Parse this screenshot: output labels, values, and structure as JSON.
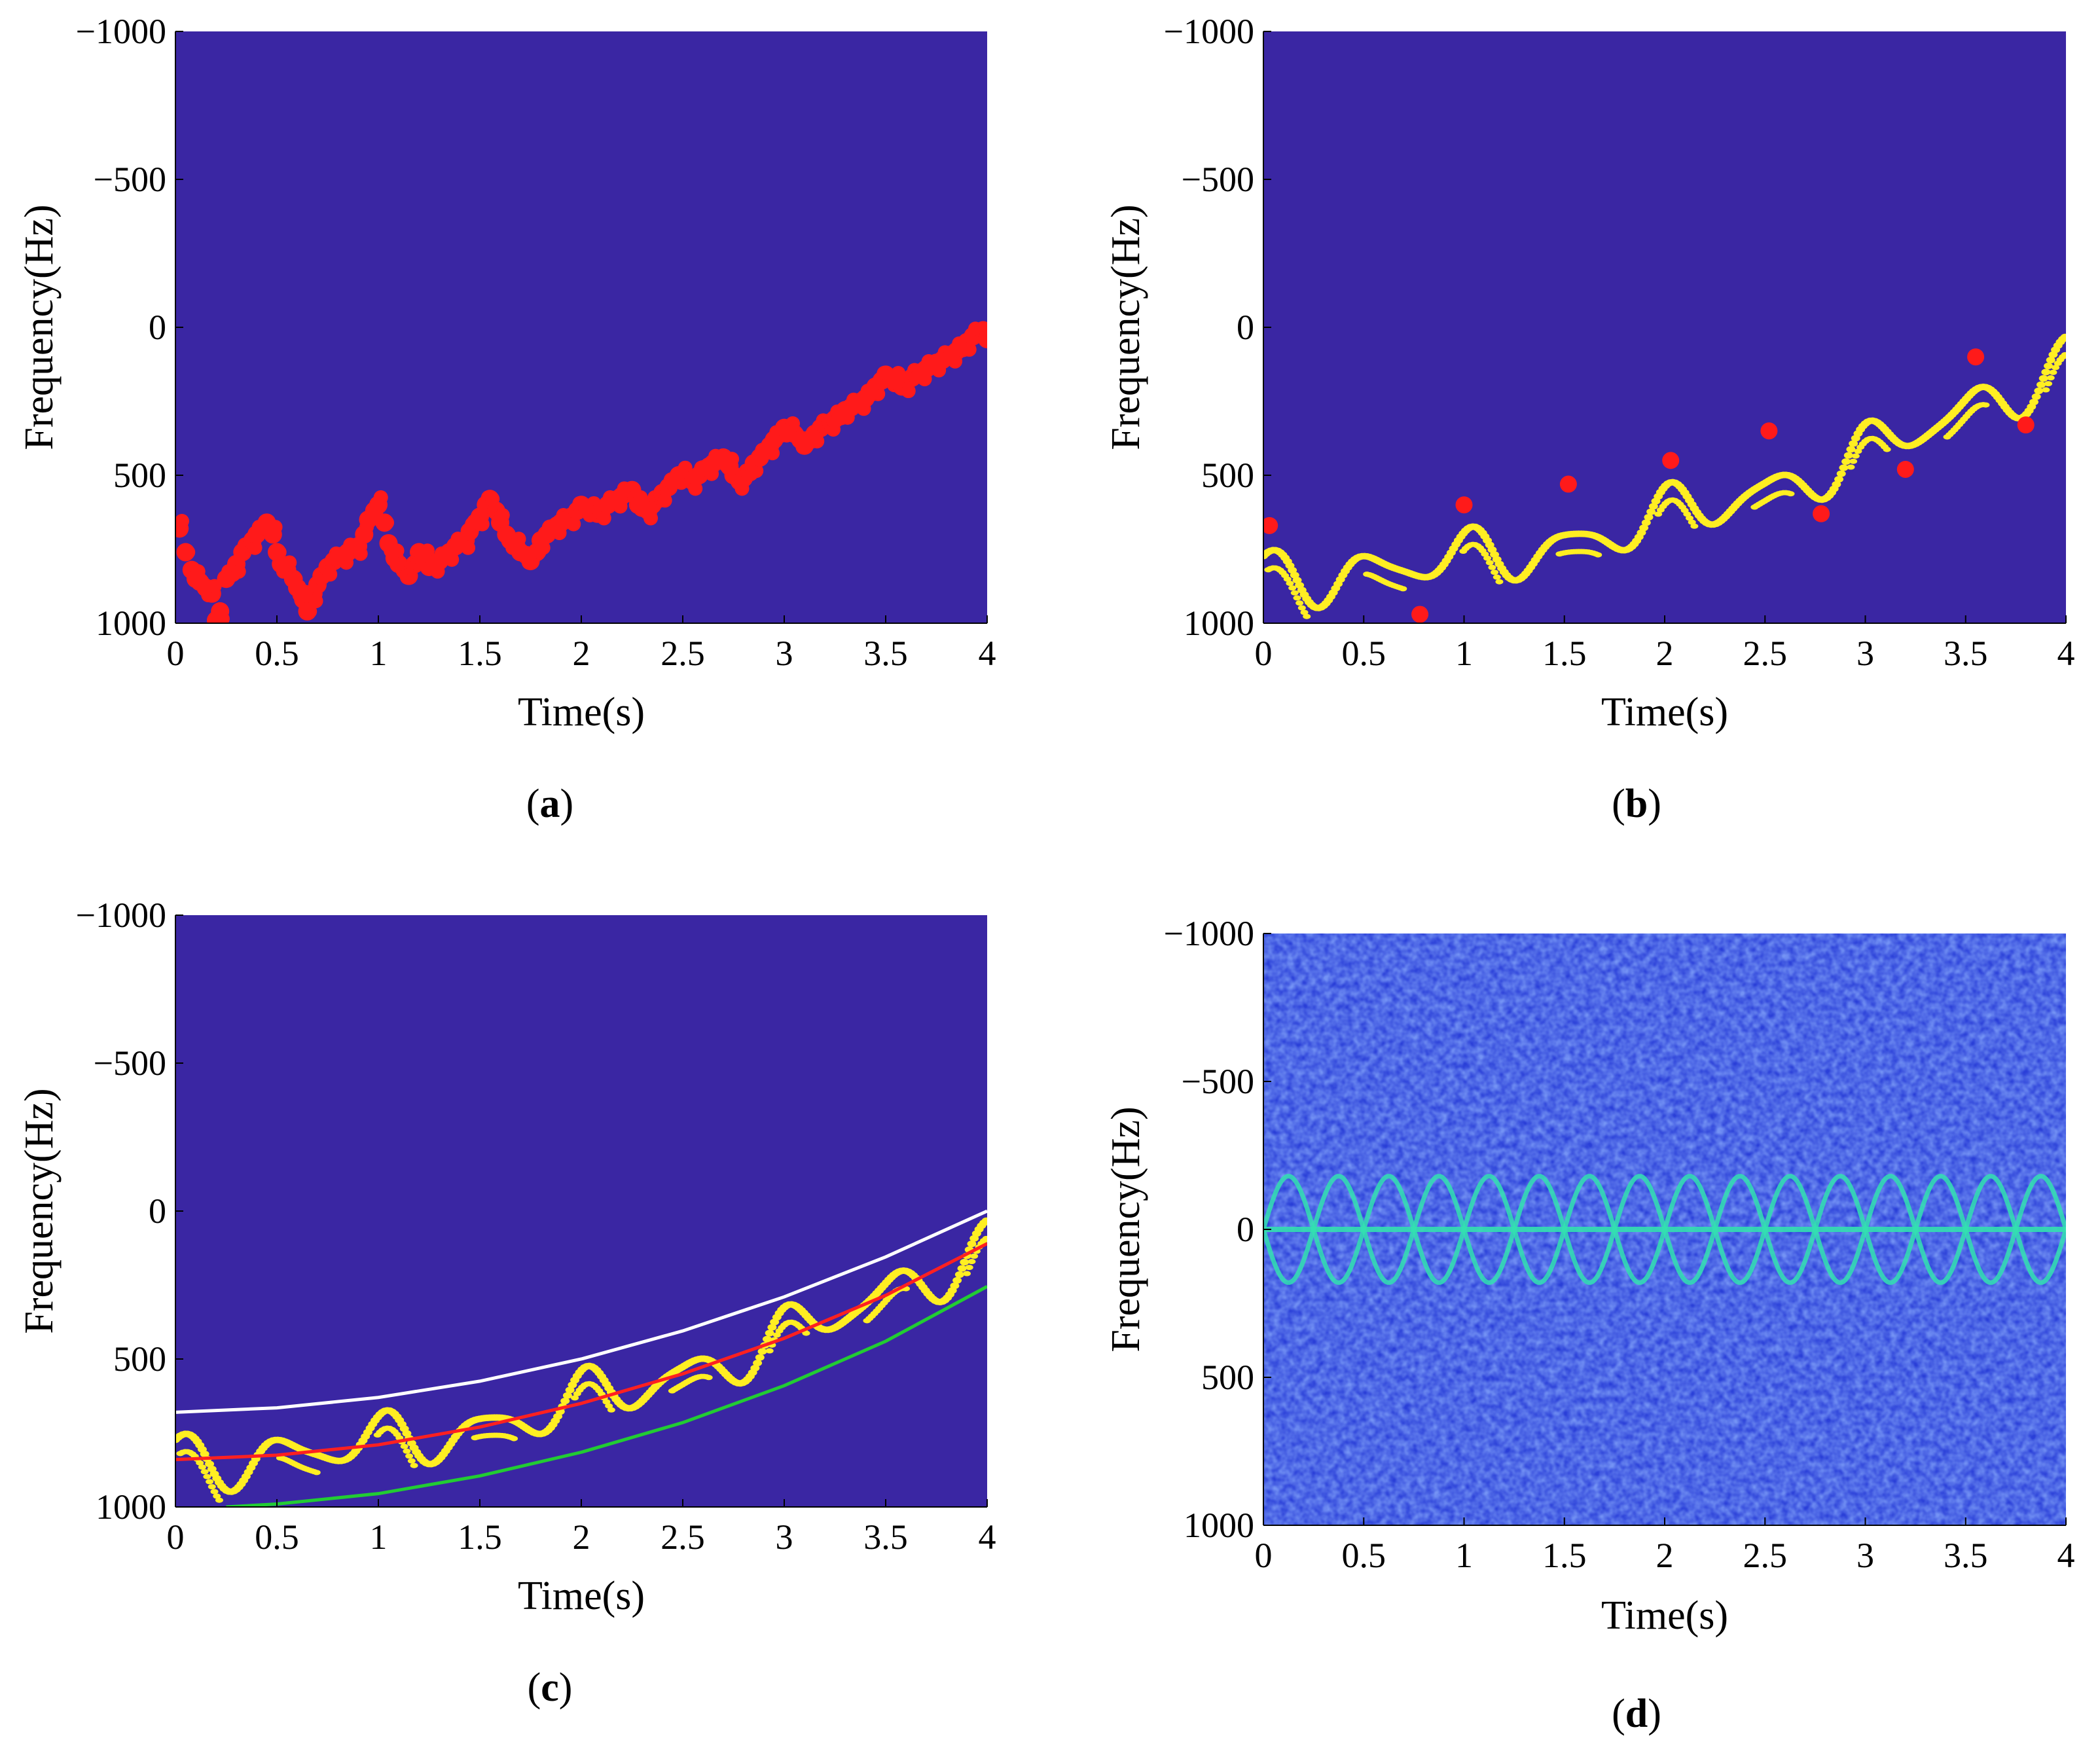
{
  "figure": {
    "panels": [
      {
        "id": "a",
        "caption_letter": "a"
      },
      {
        "id": "b",
        "caption_letter": "b"
      },
      {
        "id": "c",
        "caption_letter": "c"
      },
      {
        "id": "d",
        "caption_letter": "d"
      }
    ]
  },
  "colors": {
    "background": "#3a26a3",
    "red_points": "#ff1a1a",
    "yellow_ridge": "#ffee22",
    "white_curve": "#ffffff",
    "red_curve": "#ff2020",
    "green_curve": "#22cc33",
    "spectrogram_base": "#3050e6",
    "spectrogram_ridge": "#33e0b0"
  },
  "chart_data": [
    {
      "panel": "a",
      "type": "scatter",
      "xlabel": "Time(s)",
      "ylabel": "Frequency(Hz)",
      "xlim": [
        0,
        4
      ],
      "ylim": [
        -1000,
        1000
      ],
      "y_reversed": true,
      "xticks": [
        "0",
        "0.5",
        "1",
        "1.5",
        "2",
        "2.5",
        "3",
        "3.5",
        "4"
      ],
      "yticks": [
        "−1000",
        "−500",
        "0",
        "500",
        "1000"
      ],
      "grid": false,
      "series": [
        {
          "marker": "red-dot",
          "x": [
            0.02,
            0.05,
            0.08,
            0.1,
            0.12,
            0.15,
            0.18,
            0.2,
            0.22,
            0.25,
            0.28,
            0.3,
            0.33,
            0.35,
            0.38,
            0.4,
            0.43,
            0.45,
            0.48,
            0.5,
            0.52,
            0.55,
            0.58,
            0.6,
            0.63,
            0.65,
            0.68,
            0.7,
            0.72,
            0.75,
            0.78,
            0.8,
            0.83,
            0.85,
            0.88,
            0.9,
            0.93,
            0.95,
            0.98,
            1.0,
            1.03,
            1.05,
            1.08,
            1.1,
            1.13,
            1.15,
            1.18,
            1.2,
            1.23,
            1.25,
            1.28,
            1.3,
            1.33,
            1.35,
            1.38,
            1.4,
            1.43,
            1.45,
            1.48,
            1.5,
            1.53,
            1.55,
            1.58,
            1.6,
            1.63,
            1.65,
            1.68,
            1.7,
            1.73,
            1.75,
            1.78,
            1.8,
            1.83,
            1.85,
            1.88,
            1.9,
            1.93,
            1.95,
            1.98,
            2.0,
            2.03,
            2.05,
            2.08,
            2.1,
            2.13,
            2.15,
            2.18,
            2.2,
            2.23,
            2.25,
            2.28,
            2.3,
            2.33,
            2.35,
            2.38,
            2.4,
            2.43,
            2.45,
            2.48,
            2.5,
            2.53,
            2.55,
            2.58,
            2.6,
            2.63,
            2.65,
            2.68,
            2.7,
            2.73,
            2.75,
            2.78,
            2.8,
            2.83,
            2.85,
            2.88,
            2.9,
            2.93,
            2.95,
            2.98,
            3.0,
            3.03,
            3.05,
            3.08,
            3.1,
            3.13,
            3.15,
            3.18,
            3.2,
            3.23,
            3.25,
            3.28,
            3.3,
            3.33,
            3.35,
            3.38,
            3.4,
            3.43,
            3.45,
            3.48,
            3.5,
            3.53,
            3.55,
            3.58,
            3.6,
            3.63,
            3.65,
            3.68,
            3.7,
            3.73,
            3.75,
            3.78,
            3.8,
            3.83,
            3.85,
            3.88,
            3.9,
            3.93,
            3.95,
            3.98,
            4.0
          ],
          "y": [
            680,
            760,
            820,
            850,
            860,
            880,
            900,
            990,
            960,
            850,
            830,
            800,
            760,
            740,
            720,
            700,
            680,
            660,
            700,
            760,
            800,
            820,
            850,
            880,
            920,
            960,
            900,
            870,
            840,
            810,
            790,
            780,
            770,
            760,
            750,
            740,
            700,
            650,
            620,
            600,
            660,
            730,
            780,
            800,
            820,
            840,
            800,
            760,
            780,
            810,
            800,
            790,
            770,
            760,
            740,
            730,
            720,
            690,
            660,
            640,
            600,
            580,
            620,
            660,
            700,
            720,
            740,
            760,
            770,
            790,
            760,
            720,
            700,
            680,
            670,
            660,
            650,
            640,
            620,
            600,
            610,
            620,
            630,
            620,
            600,
            590,
            580,
            570,
            560,
            550,
            600,
            610,
            620,
            600,
            580,
            560,
            540,
            520,
            500,
            500,
            510,
            520,
            500,
            480,
            470,
            460,
            450,
            440,
            470,
            500,
            520,
            510,
            490,
            460,
            440,
            420,
            400,
            380,
            360,
            340,
            350,
            360,
            380,
            400,
            380,
            360,
            340,
            330,
            320,
            310,
            300,
            280,
            270,
            260,
            250,
            240,
            220,
            200,
            180,
            160,
            170,
            180,
            200,
            190,
            170,
            160,
            150,
            140,
            130,
            120,
            110,
            100,
            90,
            80,
            70,
            50,
            30,
            20,
            10,
            40
          ]
        }
      ]
    },
    {
      "panel": "b",
      "type": "scatter",
      "xlabel": "Time(s)",
      "ylabel": "Frequency(Hz)",
      "xlim": [
        0,
        4
      ],
      "ylim": [
        -1000,
        1000
      ],
      "y_reversed": true,
      "xticks": [
        "0",
        "0.5",
        "1",
        "1.5",
        "2",
        "2.5",
        "3",
        "3.5",
        "4"
      ],
      "yticks": [
        "−1000",
        "−500",
        "0",
        "500",
        "1000"
      ],
      "grid": false,
      "series": [
        {
          "marker": "red-dot",
          "x": [
            0.03,
            0.78,
            1.0,
            1.52,
            2.03,
            2.52,
            2.78,
            3.2,
            3.55,
            3.8
          ],
          "y": [
            670,
            970,
            600,
            530,
            450,
            350,
            630,
            480,
            100,
            330
          ]
        }
      ]
    },
    {
      "panel": "c",
      "type": "line",
      "xlabel": "Time(s)",
      "ylabel": "Frequency(Hz)",
      "xlim": [
        0,
        4
      ],
      "ylim": [
        -1000,
        1000
      ],
      "y_reversed": true,
      "xticks": [
        "0",
        "0.5",
        "1",
        "1.5",
        "2",
        "2.5",
        "3",
        "3.5",
        "4"
      ],
      "yticks": [
        "−1000",
        "−500",
        "0",
        "500",
        "1000"
      ],
      "grid": false,
      "series": [
        {
          "color": "white",
          "x": [
            0,
            0.5,
            1,
            1.5,
            2,
            2.5,
            3,
            3.5,
            4
          ],
          "y": [
            680,
            665,
            630,
            575,
            500,
            405,
            290,
            155,
            0
          ]
        },
        {
          "color": "red",
          "x": [
            0,
            0.5,
            1,
            1.5,
            2,
            2.5,
            3,
            3.5,
            4
          ],
          "y": [
            840,
            825,
            790,
            730,
            650,
            550,
            430,
            285,
            110
          ]
        },
        {
          "color": "green",
          "x": [
            0.25,
            0.5,
            1,
            1.5,
            2,
            2.5,
            3,
            3.5,
            4
          ],
          "y": [
            1000,
            990,
            955,
            895,
            815,
            715,
            590,
            440,
            255
          ]
        }
      ]
    },
    {
      "panel": "d",
      "type": "heatmap",
      "xlabel": "Time(s)",
      "ylabel": "Frequency(Hz)",
      "xlim": [
        0,
        4
      ],
      "ylim": [
        -1000,
        1000
      ],
      "y_reversed": true,
      "xticks": [
        "0",
        "0.5",
        "1",
        "1.5",
        "2",
        "2.5",
        "3",
        "3.5",
        "4"
      ],
      "yticks": [
        "−1000",
        "−500",
        "0",
        "500",
        "1000"
      ],
      "grid": false,
      "ridge": {
        "center_hz": 0,
        "amplitude_hz": 180,
        "period_s": 0.5
      }
    }
  ]
}
